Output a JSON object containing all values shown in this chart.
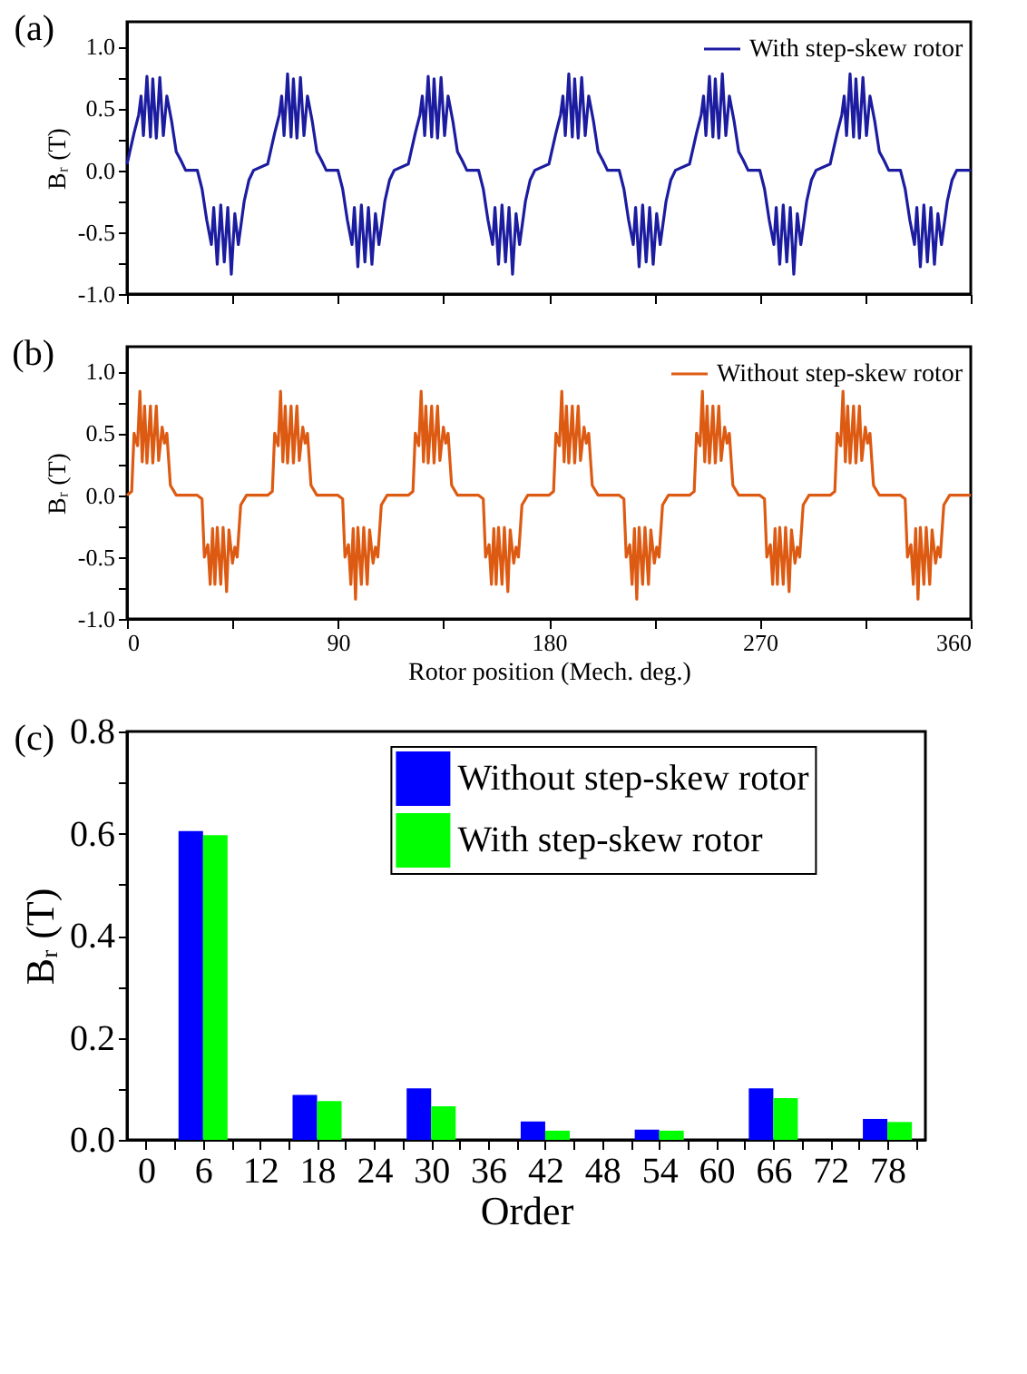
{
  "chart_data": [
    {
      "type": "line",
      "annotations": [
        "(a)"
      ],
      "ylabel": "Bᵣ (T)",
      "xlim": [
        0,
        360
      ],
      "ylim": [
        -1,
        1.2
      ],
      "xticks": [
        0,
        {
          "value": 45,
          "label": null
        },
        90,
        {
          "value": 135,
          "label": null
        },
        180,
        {
          "value": 225,
          "label": null
        },
        270,
        {
          "value": 315,
          "label": null
        },
        360
      ],
      "yticks": [
        {
          "value": -1,
          "label": "-1.0"
        },
        {
          "value": -0.75,
          "label": null
        },
        {
          "value": -0.5,
          "label": "-0.5"
        },
        {
          "value": -0.25,
          "label": null
        },
        {
          "value": 0,
          "label": "0.0"
        },
        {
          "value": 0.25,
          "label": null
        },
        {
          "value": 0.5,
          "label": "0.5"
        },
        {
          "value": 0.75,
          "label": null
        },
        {
          "value": 1,
          "label": "1.0"
        }
      ],
      "tick_labels": "y",
      "grid": false,
      "legend": "top right",
      "marker": "none",
      "line_style": "solid",
      "series": [
        {
          "name": "With step-skew rotor",
          "color": "#1c1ca0",
          "x": [
            0,
            3,
            5,
            6,
            7,
            8.5,
            10,
            11,
            12.5,
            14,
            15.5,
            17,
            19,
            21,
            23,
            25,
            30,
            32,
            34,
            36,
            37,
            38.5,
            40,
            41.5,
            43,
            44.5,
            46,
            47.5,
            50,
            52,
            54,
            60,
            63,
            65,
            66,
            67,
            68.5,
            70,
            71,
            72.5,
            74,
            75.5,
            77,
            79,
            81,
            83,
            85,
            90,
            92,
            94,
            96,
            97,
            98.5,
            100,
            101.5,
            103,
            104.5,
            106,
            107.5,
            110,
            112,
            114,
            120,
            123,
            125,
            126,
            127,
            128.5,
            130,
            131,
            132.5,
            134,
            135.5,
            137,
            139,
            141,
            143,
            145,
            150,
            152,
            154,
            156,
            157,
            158.5,
            160,
            161.5,
            163,
            164.5,
            166,
            167.5,
            170,
            172,
            174,
            180,
            183,
            185,
            186,
            187,
            188.5,
            190,
            191,
            192.5,
            194,
            195.5,
            197,
            199,
            201,
            203,
            205,
            210,
            212,
            214,
            216,
            217,
            218.5,
            220,
            221.5,
            223,
            224.5,
            226,
            227.5,
            230,
            232,
            234,
            240,
            243,
            245,
            246,
            247,
            248.5,
            250,
            251,
            252.5,
            254,
            255.5,
            257,
            259,
            261,
            263,
            265,
            270,
            272,
            274,
            276,
            277,
            278.5,
            280,
            281.5,
            283,
            284.5,
            286,
            287.5,
            290,
            292,
            294,
            300,
            303,
            305,
            306,
            307,
            308.5,
            310,
            311,
            312.5,
            314,
            315.5,
            317,
            319,
            321,
            323,
            325,
            330,
            332,
            334,
            336,
            337,
            338.5,
            340,
            341.5,
            343,
            344.5,
            346,
            347.5,
            350,
            352,
            354,
            360
          ],
          "values": [
            0.05,
            0.3,
            0.45,
            0.6,
            0.28,
            0.76,
            0.27,
            0.74,
            0.26,
            0.75,
            0.28,
            0.6,
            0.4,
            0.15,
            0.08,
            0,
            0,
            -0.15,
            -0.4,
            -0.6,
            -0.3,
            -0.76,
            -0.28,
            -0.74,
            -0.3,
            -0.84,
            -0.35,
            -0.6,
            -0.25,
            -0.08,
            0,
            0.05,
            0.3,
            0.45,
            0.6,
            0.28,
            0.78,
            0.27,
            0.74,
            0.26,
            0.75,
            0.28,
            0.6,
            0.4,
            0.15,
            0.08,
            0,
            0,
            -0.15,
            -0.4,
            -0.6,
            -0.3,
            -0.78,
            -0.28,
            -0.74,
            -0.3,
            -0.76,
            -0.35,
            -0.6,
            -0.25,
            -0.08,
            0,
            0.05,
            0.3,
            0.45,
            0.6,
            0.28,
            0.76,
            0.27,
            0.74,
            0.26,
            0.75,
            0.28,
            0.6,
            0.4,
            0.15,
            0.08,
            0,
            0,
            -0.15,
            -0.4,
            -0.6,
            -0.3,
            -0.76,
            -0.28,
            -0.74,
            -0.3,
            -0.84,
            -0.35,
            -0.6,
            -0.25,
            -0.08,
            0,
            0.05,
            0.3,
            0.45,
            0.6,
            0.28,
            0.78,
            0.27,
            0.74,
            0.26,
            0.75,
            0.28,
            0.6,
            0.4,
            0.15,
            0.08,
            0,
            0,
            -0.15,
            -0.4,
            -0.6,
            -0.3,
            -0.78,
            -0.28,
            -0.74,
            -0.3,
            -0.76,
            -0.35,
            -0.6,
            -0.25,
            -0.08,
            0,
            0.05,
            0.3,
            0.45,
            0.6,
            0.28,
            0.76,
            0.27,
            0.74,
            0.26,
            0.78,
            0.28,
            0.6,
            0.4,
            0.15,
            0.08,
            0,
            0,
            -0.15,
            -0.4,
            -0.6,
            -0.3,
            -0.76,
            -0.28,
            -0.74,
            -0.3,
            -0.84,
            -0.35,
            -0.6,
            -0.25,
            -0.08,
            0,
            0.05,
            0.3,
            0.45,
            0.6,
            0.28,
            0.78,
            0.27,
            0.74,
            0.26,
            0.75,
            0.28,
            0.6,
            0.4,
            0.15,
            0.08,
            0,
            0,
            -0.15,
            -0.4,
            -0.6,
            -0.3,
            -0.78,
            -0.28,
            -0.74,
            -0.3,
            -0.76,
            -0.35,
            -0.6,
            -0.25,
            -0.08,
            0,
            0
          ]
        }
      ]
    },
    {
      "type": "line",
      "annotations": [
        "(b)"
      ],
      "ylabel": "Bᵣ (T)",
      "xlabel": "Rotor position (Mech. deg.)",
      "xlim": [
        0,
        360
      ],
      "ylim": [
        -1,
        1.2
      ],
      "xticks": [
        0,
        {
          "value": 45,
          "label": null
        },
        90,
        {
          "value": 135,
          "label": null
        },
        180,
        {
          "value": 225,
          "label": null
        },
        270,
        {
          "value": 315,
          "label": null
        },
        360
      ],
      "yticks": [
        {
          "value": -1,
          "label": "-1.0"
        },
        {
          "value": -0.75,
          "label": null
        },
        {
          "value": -0.5,
          "label": "-0.5"
        },
        {
          "value": -0.25,
          "label": null
        },
        {
          "value": 0,
          "label": "0.0"
        },
        {
          "value": 0.25,
          "label": null
        },
        {
          "value": 0.5,
          "label": "0.5"
        },
        {
          "value": 0.75,
          "label": null
        },
        {
          "value": 1,
          "label": "1.0"
        }
      ],
      "grid": false,
      "legend": "top right",
      "marker": "none",
      "line_style": "solid",
      "series": [
        {
          "name": "Without step-skew rotor",
          "color": "#dd5a12",
          "x": [
            0,
            2,
            3,
            4.5,
            5.5,
            6.5,
            7.5,
            8.5,
            10,
            11,
            12.5,
            13.5,
            15,
            16,
            17,
            18.5,
            21,
            30,
            32,
            33,
            34.5,
            35.5,
            36.5,
            37.5,
            38.5,
            40,
            41,
            42.5,
            43.5,
            45,
            46,
            47,
            48.5,
            51,
            60,
            62,
            63,
            64.5,
            65.5,
            66.5,
            67.5,
            68.5,
            70,
            71,
            72.5,
            73.5,
            75,
            76,
            77,
            78.5,
            81,
            90,
            92,
            93,
            94.5,
            95.5,
            96.5,
            97.5,
            98.5,
            100,
            101,
            102.5,
            103.5,
            105,
            106,
            107,
            108.5,
            111,
            120,
            122,
            123,
            124.5,
            125.5,
            126.5,
            127.5,
            128.5,
            130,
            131,
            132.5,
            133.5,
            135,
            136,
            137,
            138.5,
            141,
            150,
            152,
            153,
            154.5,
            155.5,
            156.5,
            157.5,
            158.5,
            160,
            161,
            162.5,
            163.5,
            165,
            166,
            167,
            168.5,
            171,
            180,
            182,
            183,
            184.5,
            185.5,
            186.5,
            187.5,
            188.5,
            190,
            191,
            192.5,
            193.5,
            195,
            196,
            197,
            198.5,
            201,
            210,
            212,
            213,
            214.5,
            215.5,
            216.5,
            217.5,
            218.5,
            220,
            221,
            222.5,
            223.5,
            225,
            226,
            227,
            228.5,
            231,
            240,
            242,
            243,
            244.5,
            245.5,
            246.5,
            247.5,
            248.5,
            250,
            251,
            252.5,
            253.5,
            255,
            256,
            257,
            258.5,
            261,
            270,
            272,
            273,
            274.5,
            275.5,
            276.5,
            277.5,
            278.5,
            280,
            281,
            282.5,
            283.5,
            285,
            286,
            287,
            288.5,
            291,
            300,
            302,
            303,
            304.5,
            305.5,
            306.5,
            307.5,
            308.5,
            310,
            311,
            312.5,
            313.5,
            315,
            316,
            317,
            318.5,
            321,
            330,
            332,
            333,
            334.5,
            335.5,
            336.5,
            337.5,
            338.5,
            340,
            341,
            342.5,
            343.5,
            345,
            346,
            347,
            348.5,
            351,
            360
          ],
          "values": [
            0,
            0.03,
            0.5,
            0.4,
            0.84,
            0.27,
            0.72,
            0.26,
            0.72,
            0.26,
            0.72,
            0.28,
            0.55,
            0.42,
            0.5,
            0.08,
            0,
            0,
            -0.03,
            -0.5,
            -0.4,
            -0.72,
            -0.27,
            -0.72,
            -0.26,
            -0.72,
            -0.26,
            -0.78,
            -0.28,
            -0.55,
            -0.42,
            -0.5,
            -0.08,
            0,
            0,
            0.03,
            0.5,
            0.4,
            0.84,
            0.27,
            0.72,
            0.26,
            0.72,
            0.26,
            0.72,
            0.28,
            0.55,
            0.42,
            0.5,
            0.08,
            0,
            0,
            -0.03,
            -0.5,
            -0.4,
            -0.72,
            -0.27,
            -0.84,
            -0.26,
            -0.72,
            -0.26,
            -0.72,
            -0.28,
            -0.55,
            -0.42,
            -0.5,
            -0.08,
            0,
            0,
            0.03,
            0.5,
            0.4,
            0.84,
            0.27,
            0.72,
            0.26,
            0.72,
            0.26,
            0.72,
            0.28,
            0.55,
            0.42,
            0.5,
            0.08,
            0,
            0,
            -0.03,
            -0.5,
            -0.4,
            -0.72,
            -0.27,
            -0.72,
            -0.26,
            -0.72,
            -0.26,
            -0.78,
            -0.28,
            -0.55,
            -0.42,
            -0.5,
            -0.08,
            0,
            0,
            0.03,
            0.5,
            0.4,
            0.84,
            0.27,
            0.72,
            0.26,
            0.72,
            0.26,
            0.72,
            0.28,
            0.55,
            0.42,
            0.5,
            0.08,
            0,
            0,
            -0.03,
            -0.5,
            -0.4,
            -0.72,
            -0.27,
            -0.84,
            -0.26,
            -0.72,
            -0.26,
            -0.72,
            -0.28,
            -0.55,
            -0.42,
            -0.5,
            -0.08,
            0,
            0,
            0.03,
            0.5,
            0.4,
            0.84,
            0.27,
            0.72,
            0.26,
            0.72,
            0.26,
            0.72,
            0.28,
            0.55,
            0.42,
            0.5,
            0.08,
            0,
            0,
            -0.03,
            -0.5,
            -0.4,
            -0.72,
            -0.27,
            -0.72,
            -0.26,
            -0.72,
            -0.26,
            -0.78,
            -0.28,
            -0.55,
            -0.42,
            -0.5,
            -0.08,
            0,
            0,
            0.03,
            0.5,
            0.4,
            0.84,
            0.27,
            0.72,
            0.26,
            0.72,
            0.26,
            0.72,
            0.28,
            0.55,
            0.42,
            0.5,
            0.08,
            0,
            0,
            -0.03,
            -0.5,
            -0.4,
            -0.72,
            -0.27,
            -0.84,
            -0.26,
            -0.72,
            -0.26,
            -0.72,
            -0.28,
            -0.55,
            -0.42,
            -0.5,
            -0.08,
            0,
            0
          ]
        }
      ]
    },
    {
      "type": "bar",
      "annotations": [
        "(c)"
      ],
      "ylabel": "Bᵣ (T)",
      "xlabel": "Order",
      "xlim": [
        -2,
        82
      ],
      "ylim": [
        0,
        0.8
      ],
      "x": [
        6,
        18,
        30,
        42,
        54,
        66,
        78
      ],
      "xticks": [
        0,
        {
          "value": 3,
          "label": null
        },
        6,
        {
          "value": 9,
          "label": null
        },
        12,
        {
          "value": 15,
          "label": null
        },
        18,
        {
          "value": 21,
          "label": null
        },
        24,
        {
          "value": 27,
          "label": null
        },
        30,
        {
          "value": 33,
          "label": null
        },
        36,
        {
          "value": 39,
          "label": null
        },
        42,
        {
          "value": 45,
          "label": null
        },
        48,
        {
          "value": 51,
          "label": null
        },
        54,
        {
          "value": 57,
          "label": null
        },
        60,
        {
          "value": 63,
          "label": null
        },
        66,
        {
          "value": 69,
          "label": null
        },
        72,
        {
          "value": 75,
          "label": null
        },
        78,
        {
          "value": 81,
          "label": null
        }
      ],
      "yticks": [
        {
          "value": 0,
          "label": "0.0"
        },
        {
          "value": 0.1,
          "label": null
        },
        {
          "value": 0.2,
          "label": "0.2"
        },
        {
          "value": 0.3,
          "label": null
        },
        {
          "value": 0.4,
          "label": "0.4"
        },
        {
          "value": 0.5,
          "label": null
        },
        {
          "value": 0.6,
          "label": "0.6"
        },
        {
          "value": 0.7,
          "label": null
        },
        {
          "value": 0.8,
          "label": "0.8"
        }
      ],
      "grid": false,
      "legend": "top",
      "series": [
        {
          "name": "Without step-skew rotor",
          "color": "#0000ff",
          "values": [
            0.605,
            0.088,
            0.101,
            0.036,
            0.02,
            0.101,
            0.041
          ]
        },
        {
          "name": "With step-skew rotor",
          "color": "#00ff00",
          "values": [
            0.597,
            0.076,
            0.066,
            0.018,
            0.018,
            0.082,
            0.035
          ]
        }
      ]
    }
  ]
}
